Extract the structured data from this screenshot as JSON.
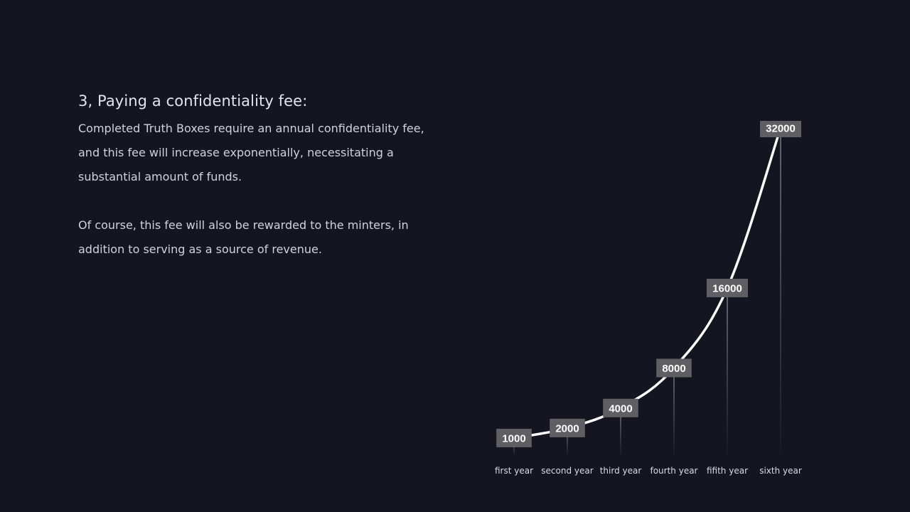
{
  "slide": {
    "heading": "3, Paying a confidentiality fee:",
    "paragraphs": [
      "Completed Truth Boxes require an annual confidentiality fee, and this fee will increase exponentially, necessitating a substantial amount of funds.",
      "Of course, this fee will also be rewarded to the minters, in addition to serving as a source of revenue."
    ]
  },
  "colors": {
    "background": "#151421",
    "line": "#ffffff",
    "label_box": "#5f5f63",
    "drop_line": "#c8c8d0"
  },
  "chart_data": {
    "type": "line",
    "title": "",
    "xlabel": "",
    "ylabel": "",
    "categories": [
      "first year",
      "second year",
      "third year",
      "fourth year",
      "fifith year",
      "sixth year"
    ],
    "values": [
      1000,
      2000,
      4000,
      8000,
      16000,
      32000
    ],
    "data_labels": [
      "1000",
      "2000",
      "4000",
      "8000",
      "16000",
      "32000"
    ],
    "ylim": [
      0,
      32000
    ],
    "grid": false,
    "legend": "none"
  }
}
